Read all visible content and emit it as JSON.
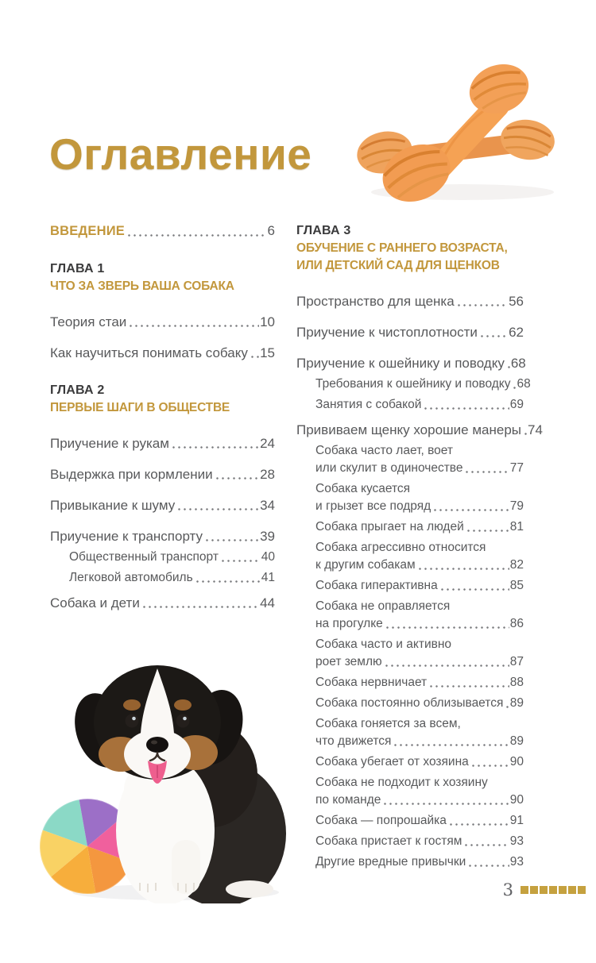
{
  "page": {
    "title": "Оглавление",
    "number": "3",
    "footer_square_count": 7
  },
  "colors": {
    "gold": "#C2973C",
    "heading_dark": "#3B3B3C",
    "text_gray": "#58595B",
    "dot_gray": "#7A7B7E",
    "footer_square_gold": "#C5A13F",
    "bone_orange": "#F09A52",
    "tongue_pink": "#EE5F8E"
  },
  "photos": {
    "top_right": "two knotted rawhide chew bones",
    "bottom_left": "tricolor puppy sitting with rainbow plush ball"
  },
  "columns": [
    {
      "name": "left",
      "blocks": [
        {
          "kind": "intro",
          "label": "ВВЕДЕНИЕ",
          "page": "6"
        },
        {
          "kind": "chapter",
          "number": "ГЛАВА 1",
          "title_lines": [
            "ЧТО ЗА ЗВЕРЬ ВАША СОБАКА"
          ],
          "entries": [
            {
              "lines": [
                "Теория стаи"
              ],
              "page": "10"
            },
            {
              "lines": [
                "Как научиться понимать собаку"
              ],
              "page": "15"
            }
          ]
        },
        {
          "kind": "chapter",
          "number": "ГЛАВА 2",
          "title_lines": [
            "ПЕРВЫЕ ШАГИ В ОБЩЕСТВЕ"
          ],
          "entries": [
            {
              "lines": [
                "Приучение к рукам"
              ],
              "page": "24"
            },
            {
              "lines": [
                "Выдержка при кормлении"
              ],
              "page": "28"
            },
            {
              "lines": [
                "Привыкание к шуму"
              ],
              "page": "34"
            },
            {
              "lines": [
                "Приучение к транспорту"
              ],
              "page": "39"
            },
            {
              "lines": [
                "Общественный транспорт"
              ],
              "page": "40",
              "sub": true
            },
            {
              "lines": [
                "Легковой автомобиль"
              ],
              "page": "41",
              "sub": true
            },
            {
              "lines": [
                "Собака и дети"
              ],
              "page": "44"
            }
          ]
        }
      ]
    },
    {
      "name": "right",
      "blocks": [
        {
          "kind": "chapter",
          "number": "ГЛАВА 3",
          "title_lines": [
            "ОБУЧЕНИЕ С РАННЕГО ВОЗРАСТА,",
            "ИЛИ ДЕТСКИЙ САД ДЛЯ ЩЕНКОВ"
          ],
          "entries": [
            {
              "lines": [
                "Пространство для щенка"
              ],
              "page": "56"
            },
            {
              "lines": [
                "Приучение к чистоплотности"
              ],
              "page": "62"
            },
            {
              "lines": [
                "Приучение к ошейнику и поводку"
              ],
              "page": "68"
            },
            {
              "lines": [
                "Требования к ошейнику и поводку"
              ],
              "page": "68",
              "sub": true
            },
            {
              "lines": [
                "Занятия с собакой"
              ],
              "page": "69",
              "sub": true
            },
            {
              "lines": [
                "Прививаем щенку хорошие манеры"
              ],
              "page": "74"
            },
            {
              "lines": [
                "Собака часто лает, воет",
                "или скулит в одиночестве"
              ],
              "page": "77",
              "sub": true
            },
            {
              "lines": [
                "Собака кусается",
                "и грызет все подряд"
              ],
              "page": "79",
              "sub": true
            },
            {
              "lines": [
                "Собака прыгает на людей"
              ],
              "page": "81",
              "sub": true
            },
            {
              "lines": [
                "Собака агрессивно относится",
                "к другим собакам"
              ],
              "page": "82",
              "sub": true
            },
            {
              "lines": [
                "Собака гиперактивна"
              ],
              "page": "85",
              "sub": true
            },
            {
              "lines": [
                "Собака не оправляется",
                "на прогулке"
              ],
              "page": "86",
              "sub": true
            },
            {
              "lines": [
                "Собака часто и активно",
                "роет землю"
              ],
              "page": "87",
              "sub": true
            },
            {
              "lines": [
                "Собака нервничает"
              ],
              "page": "88",
              "sub": true
            },
            {
              "lines": [
                "Собака постоянно облизывается"
              ],
              "page": "89",
              "sub": true
            },
            {
              "lines": [
                "Собака гоняется за всем,",
                "что движется"
              ],
              "page": "89",
              "sub": true
            },
            {
              "lines": [
                "Собака убегает от хозяина"
              ],
              "page": "90",
              "sub": true
            },
            {
              "lines": [
                "Собака не подходит к хозяину",
                "по команде"
              ],
              "page": "90",
              "sub": true
            },
            {
              "lines": [
                "Собака — попрошайка"
              ],
              "page": "91",
              "sub": true
            },
            {
              "lines": [
                "Собака пристает к гостям"
              ],
              "page": "93",
              "sub": true
            },
            {
              "lines": [
                "Другие вредные привычки"
              ],
              "page": "93",
              "sub": true
            }
          ]
        }
      ]
    }
  ]
}
